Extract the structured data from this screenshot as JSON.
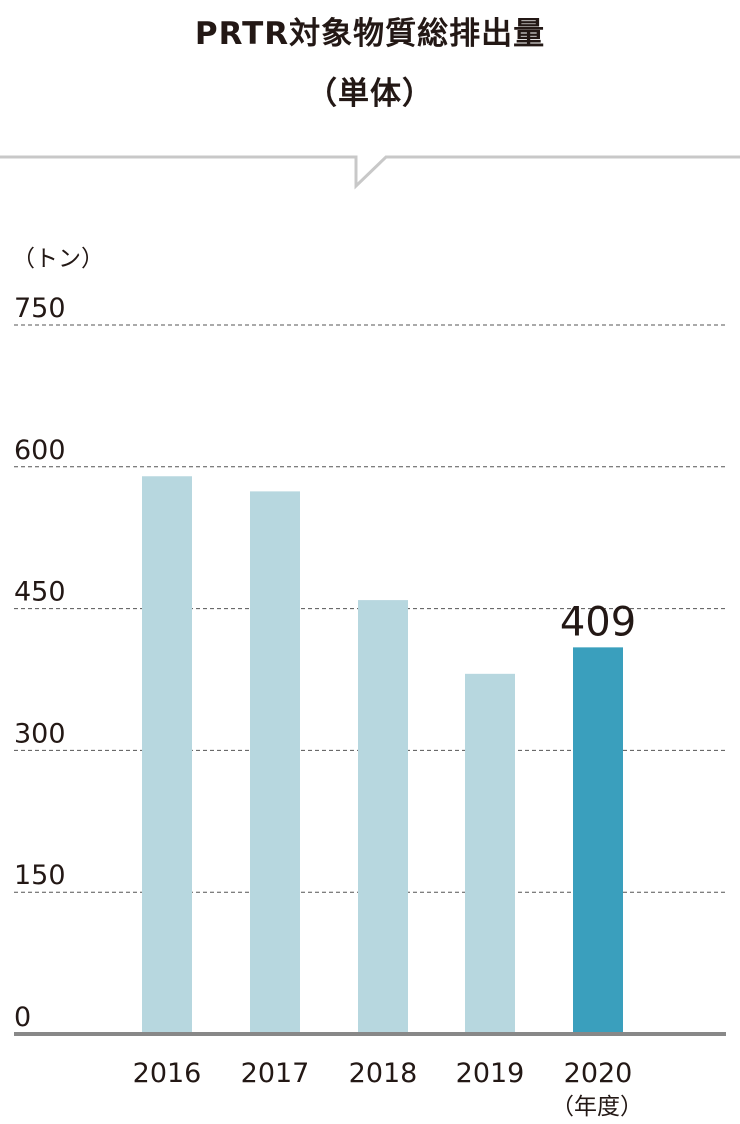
{
  "title": "PRTR対象物質総排出量",
  "subtitle": "（単体）",
  "chart_data": {
    "type": "bar",
    "y_unit": "（トン）",
    "x_unit": "（年度）",
    "categories": [
      "2016",
      "2017",
      "2018",
      "2019",
      "2020"
    ],
    "values": [
      590,
      574,
      459,
      381,
      409
    ],
    "highlight_index": 4,
    "highlight_value_label": "409",
    "ylim": [
      0,
      750
    ],
    "yticks": [
      0,
      150,
      300,
      450,
      600,
      750
    ],
    "grid": true,
    "colors": {
      "bar": "#b7d7df",
      "bar_highlight": "#3a9fbd",
      "grid": "#555555",
      "axis": "#888888",
      "frame": "#c8c8c8"
    }
  }
}
